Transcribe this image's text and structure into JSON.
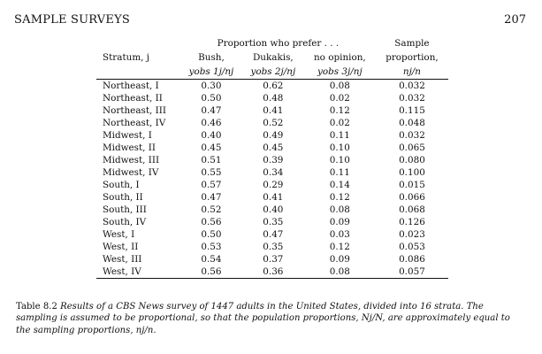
{
  "running_head": "SAMPLE SURVEYS",
  "page_number": "207",
  "table": {
    "group_header": "Proportion who prefer . . .",
    "stratum_header": "Stratum, j",
    "sample_header_1": "Sample",
    "columns": [
      {
        "label": "Bush,",
        "subscript": "yobs 1j/nj"
      },
      {
        "label": "Dukakis,",
        "subscript": "yobs 2j/nj"
      },
      {
        "label": "no opinion,",
        "subscript": "yobs 3j/nj"
      },
      {
        "label": "proportion,",
        "subscript": "nj/n"
      }
    ],
    "rows": [
      {
        "stratum": "Northeast, I",
        "bush": "0.30",
        "dukakis": "0.62",
        "no_opinion": "0.08",
        "sample": "0.032"
      },
      {
        "stratum": "Northeast, II",
        "bush": "0.50",
        "dukakis": "0.48",
        "no_opinion": "0.02",
        "sample": "0.032"
      },
      {
        "stratum": "Northeast, III",
        "bush": "0.47",
        "dukakis": "0.41",
        "no_opinion": "0.12",
        "sample": "0.115"
      },
      {
        "stratum": "Northeast, IV",
        "bush": "0.46",
        "dukakis": "0.52",
        "no_opinion": "0.02",
        "sample": "0.048"
      },
      {
        "stratum": "Midwest, I",
        "bush": "0.40",
        "dukakis": "0.49",
        "no_opinion": "0.11",
        "sample": "0.032"
      },
      {
        "stratum": "Midwest, II",
        "bush": "0.45",
        "dukakis": "0.45",
        "no_opinion": "0.10",
        "sample": "0.065"
      },
      {
        "stratum": "Midwest, III",
        "bush": "0.51",
        "dukakis": "0.39",
        "no_opinion": "0.10",
        "sample": "0.080"
      },
      {
        "stratum": "Midwest, IV",
        "bush": "0.55",
        "dukakis": "0.34",
        "no_opinion": "0.11",
        "sample": "0.100"
      },
      {
        "stratum": "South, I",
        "bush": "0.57",
        "dukakis": "0.29",
        "no_opinion": "0.14",
        "sample": "0.015"
      },
      {
        "stratum": "South, II",
        "bush": "0.47",
        "dukakis": "0.41",
        "no_opinion": "0.12",
        "sample": "0.066"
      },
      {
        "stratum": "South, III",
        "bush": "0.52",
        "dukakis": "0.40",
        "no_opinion": "0.08",
        "sample": "0.068"
      },
      {
        "stratum": "South, IV",
        "bush": "0.56",
        "dukakis": "0.35",
        "no_opinion": "0.09",
        "sample": "0.126"
      },
      {
        "stratum": "West, I",
        "bush": "0.50",
        "dukakis": "0.47",
        "no_opinion": "0.03",
        "sample": "0.023"
      },
      {
        "stratum": "West, II",
        "bush": "0.53",
        "dukakis": "0.35",
        "no_opinion": "0.12",
        "sample": "0.053"
      },
      {
        "stratum": "West, III",
        "bush": "0.54",
        "dukakis": "0.37",
        "no_opinion": "0.09",
        "sample": "0.086"
      },
      {
        "stratum": "West, IV",
        "bush": "0.56",
        "dukakis": "0.36",
        "no_opinion": "0.08",
        "sample": "0.057"
      }
    ]
  },
  "caption": {
    "label": "Table 8.2",
    "text": "Results of a CBS News survey of 1447 adults in the United States, divided into 16 strata. The sampling is assumed to be proportional, so that the population proportions, Nj/N, are approximately equal to the sampling proportions, nj/n."
  }
}
